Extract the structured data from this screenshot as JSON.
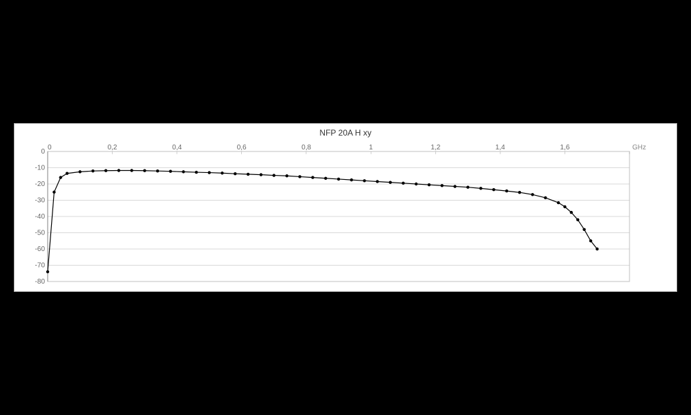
{
  "chart": {
    "type": "line",
    "title": "NFP 20A H xy",
    "title_fontsize": 12,
    "title_color": "#333333",
    "background_color": "#ffffff",
    "panel_border_color": "#b0b0b0",
    "plot_border_color": "#c0c0c0",
    "grid_color": "#d9d9d9",
    "axis_color": "#808080",
    "tick_label_color": "#666666",
    "tick_label_fontsize": 10,
    "x_unit_label": "GHz",
    "xlim": [
      0,
      1.8
    ],
    "xtick_step": 0.2,
    "xtick_decimals": 1,
    "ylim": [
      -80,
      0
    ],
    "ytick_step": 10,
    "line_color": "#000000",
    "line_width": 1.2,
    "marker_style": "circle",
    "marker_radius": 2.2,
    "marker_color": "#000000",
    "series_x": [
      0.0,
      0.02,
      0.04,
      0.06,
      0.1,
      0.14,
      0.18,
      0.22,
      0.26,
      0.3,
      0.34,
      0.38,
      0.42,
      0.46,
      0.5,
      0.54,
      0.58,
      0.62,
      0.66,
      0.7,
      0.74,
      0.78,
      0.82,
      0.86,
      0.9,
      0.94,
      0.98,
      1.02,
      1.06,
      1.1,
      1.14,
      1.18,
      1.22,
      1.26,
      1.3,
      1.34,
      1.38,
      1.42,
      1.46,
      1.5,
      1.54,
      1.58,
      1.6,
      1.62,
      1.64,
      1.66,
      1.68,
      1.7
    ],
    "series_y": [
      -74.0,
      -25.0,
      -16.0,
      -13.5,
      -12.5,
      -12.0,
      -11.8,
      -11.7,
      -11.7,
      -11.8,
      -12.0,
      -12.2,
      -12.5,
      -12.8,
      -13.0,
      -13.3,
      -13.7,
      -14.0,
      -14.3,
      -14.7,
      -15.0,
      -15.5,
      -16.0,
      -16.5,
      -17.0,
      -17.5,
      -18.0,
      -18.5,
      -19.0,
      -19.5,
      -20.0,
      -20.5,
      -21.0,
      -21.5,
      -22.0,
      -22.7,
      -23.5,
      -24.3,
      -25.2,
      -26.5,
      -28.5,
      -31.5,
      -34.0,
      -37.5,
      -42.0,
      -48.0,
      -55.0,
      -60.0
    ]
  }
}
